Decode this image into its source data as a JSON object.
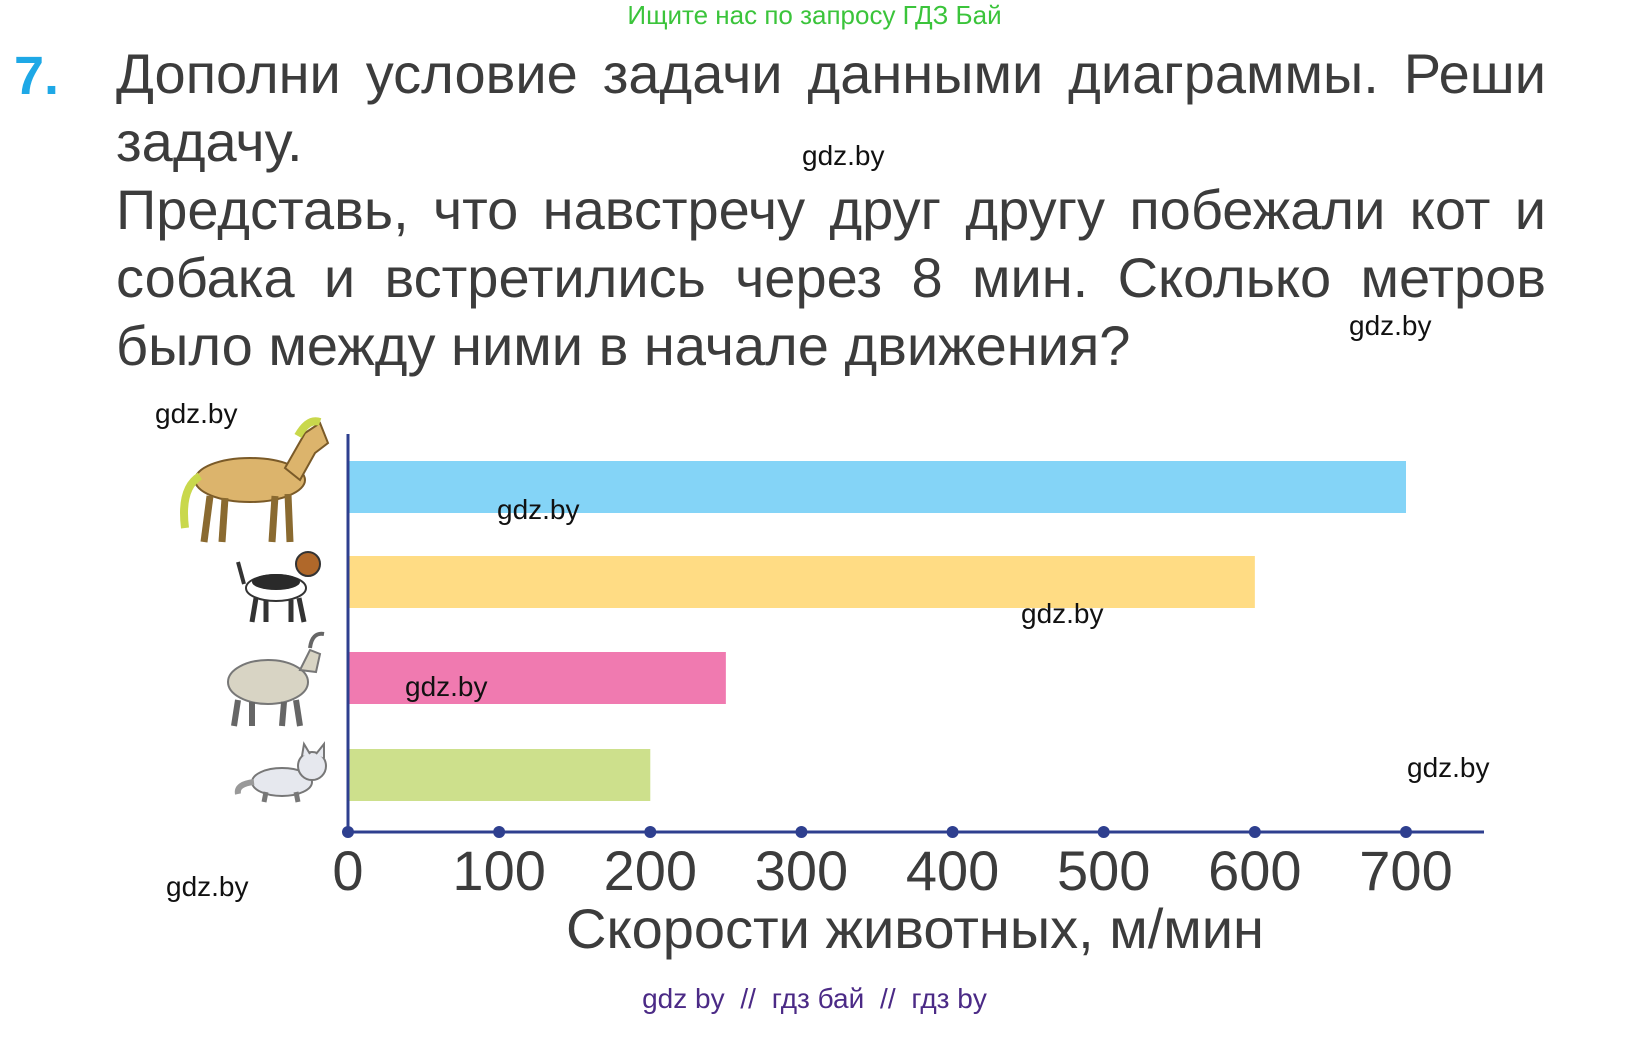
{
  "banner": "Ищите нас по запросу ГДЗ Бай",
  "task": {
    "number": "7.",
    "lines": [
      "Дополни условие задачи данными диаграммы. Реши",
      "задачу.",
      "Представь, что навстречу друг другу побежали кот и",
      "собака и встретились через 8 мин. Сколько метров",
      "было между ними в начале движения?"
    ]
  },
  "watermark": "gdz.by",
  "bottom_links": [
    "gdz by",
    "//",
    "гдз бай",
    "//",
    "гдз by"
  ],
  "chart_data": {
    "type": "bar",
    "orientation": "horizontal",
    "categories": [
      "horse-icon",
      "dog-icon",
      "goat-icon",
      "cat-icon"
    ],
    "values": [
      700,
      600,
      250,
      200
    ],
    "colors": [
      "#84d4f7",
      "#ffdc84",
      "#f07ab0",
      "#cde08c"
    ],
    "xticks": [
      "0",
      "100",
      "200",
      "300",
      "400",
      "500",
      "600",
      "700"
    ],
    "xlim": [
      0,
      750
    ],
    "xlabel": "Скорости животных, м/мин",
    "axis_color": "#2e3f8f"
  }
}
